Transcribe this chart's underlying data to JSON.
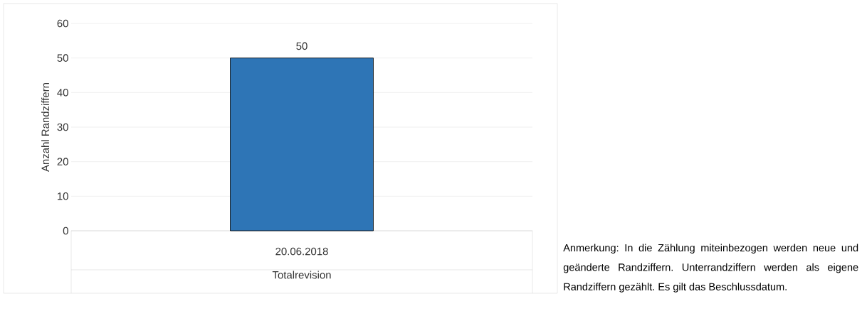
{
  "chart_data": {
    "type": "bar",
    "categories": [
      "20.06.2018"
    ],
    "values": [
      50
    ],
    "color": "#2e75b6",
    "xlabel": "Totalrevision",
    "ylabel": "Anzahl Randziffern",
    "ylim": [
      0,
      60
    ],
    "yticks": [
      0,
      10,
      20,
      30,
      40,
      50,
      60
    ],
    "grid": "y",
    "data_labels": true,
    "annotations": [
      "Anmerkung: In die Zählung miteinbezogen werden neue und geänderte Randziffern. Unterrandziffern werden als eigene Randziffern gezählt. Es gilt das Beschlussdatum."
    ]
  }
}
